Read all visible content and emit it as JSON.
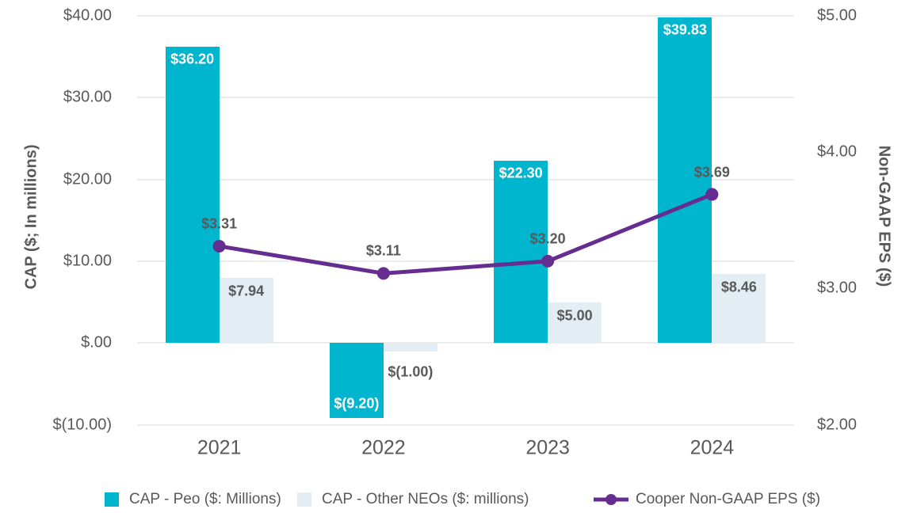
{
  "chart_data": {
    "type": "combo-bar-line",
    "categories": [
      "2021",
      "2022",
      "2023",
      "2024"
    ],
    "series": [
      {
        "name": "CAP - Peo ($: Millions)",
        "type": "bar",
        "axis": "left",
        "color": "#00b5ce",
        "label_color": "#ffffff",
        "values": [
          36.2,
          -9.2,
          22.3,
          39.83
        ],
        "labels": [
          "$36.20",
          "$(9.20)",
          "$22.30",
          "$39.83"
        ]
      },
      {
        "name": "CAP - Other NEOs ($: millions)",
        "type": "bar",
        "axis": "left",
        "color": "#e2eef3",
        "label_color": "#595959",
        "values": [
          7.94,
          -1.0,
          5.0,
          8.46
        ],
        "labels": [
          "$7.94",
          "$(1.00)",
          "$5.00",
          "$8.46"
        ]
      },
      {
        "name": "Cooper Non-GAAP EPS ($)",
        "type": "line",
        "axis": "right",
        "color": "#662d91",
        "label_color": "#595959",
        "values": [
          3.31,
          3.11,
          3.2,
          3.69
        ],
        "labels": [
          "$3.31",
          "$3.11",
          "$3.20",
          "$3.69"
        ]
      }
    ],
    "left_axis": {
      "title": "CAP ($; In millions)",
      "tick_labels": [
        "$40.00",
        "$30.00",
        "$20.00",
        "$10.00",
        "$.00",
        "$(10.00)"
      ],
      "tick_values": [
        40,
        30,
        20,
        10,
        0,
        -10
      ],
      "range": [
        -10,
        40
      ]
    },
    "right_axis": {
      "title": "Non-GAAP EPS ($)",
      "tick_labels": [
        "$5.00",
        "$4.00",
        "$3.00",
        "$2.00"
      ],
      "tick_values": [
        5,
        4,
        3,
        2
      ],
      "range": [
        2,
        5
      ]
    },
    "grid": true,
    "legend_position": "bottom",
    "colors": {
      "grid": "#ebebeb",
      "axis_text": "#595959",
      "background": "#ffffff"
    }
  }
}
